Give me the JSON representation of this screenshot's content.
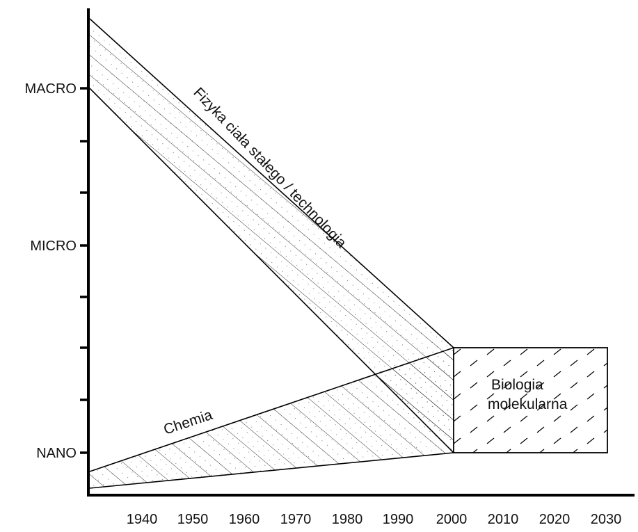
{
  "diagram": {
    "y_levels": [
      {
        "key": "macro",
        "label": "MACRO"
      },
      {
        "key": "micro",
        "label": "MICRO"
      },
      {
        "key": "nano",
        "label": "NANO"
      }
    ],
    "x_ticks": [
      "1940",
      "1950",
      "1960",
      "1970",
      "1980",
      "1990",
      "2000",
      "2010",
      "2020",
      "2030"
    ],
    "bands": {
      "physics_label": "Fizyka ciała stałego / technologia",
      "chemistry_label": "Chemia",
      "biology_label_line1": "Biologia",
      "biology_label_line2": "molekularna"
    },
    "colors": {
      "line": "#000000",
      "background": "#ffffff"
    }
  }
}
